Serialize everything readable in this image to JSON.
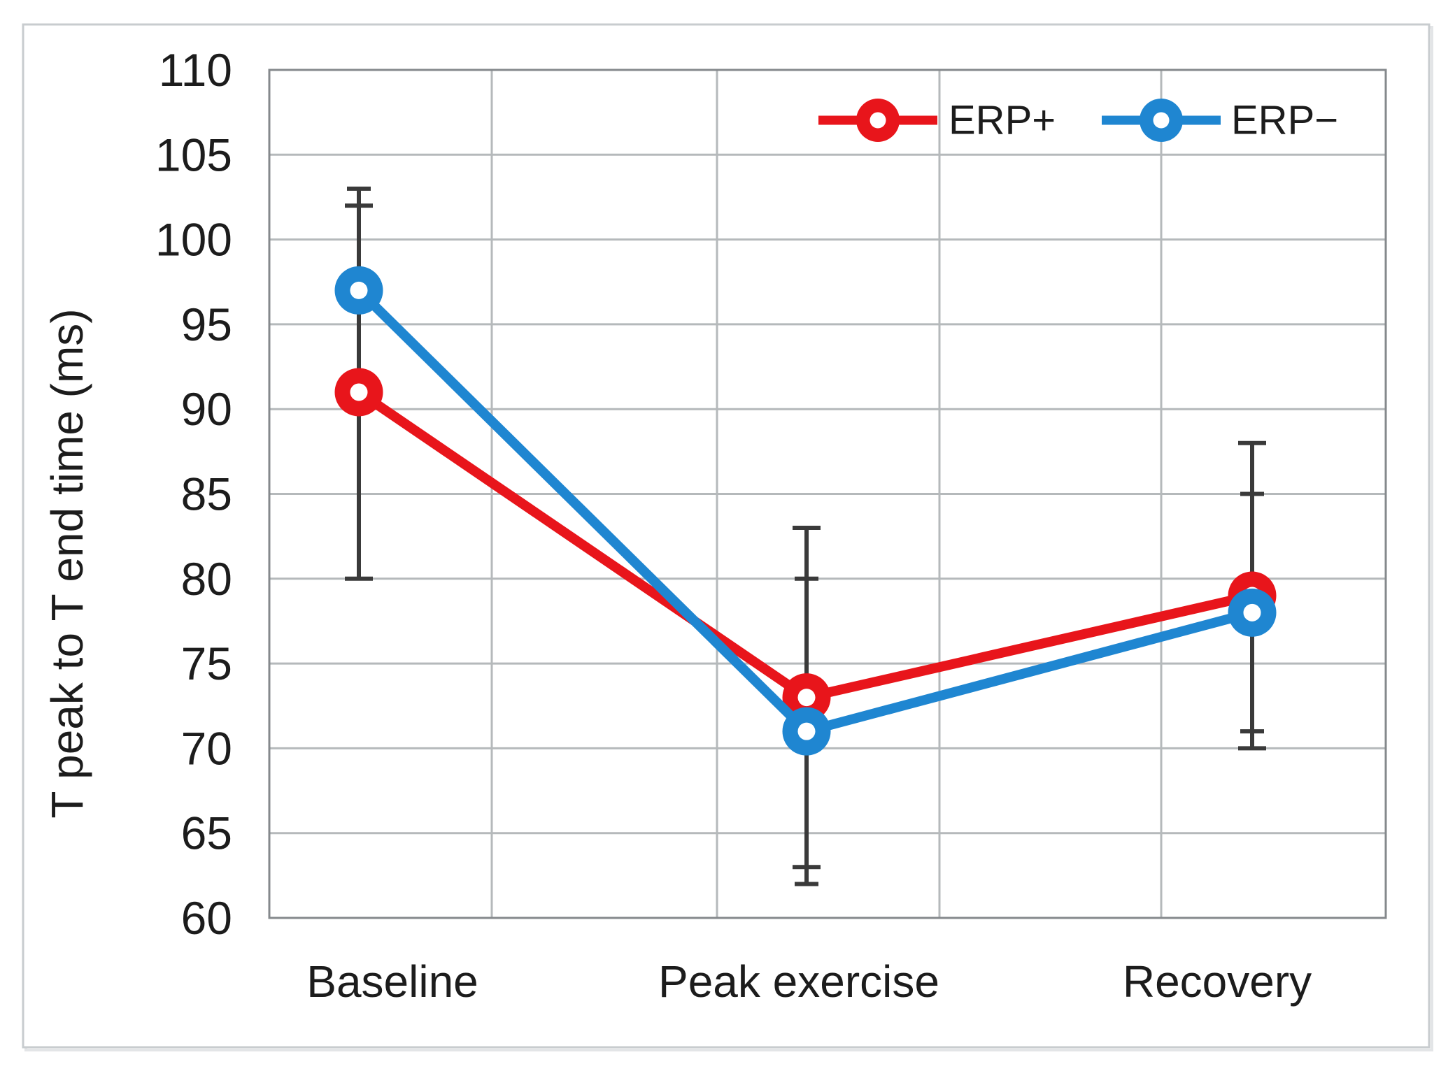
{
  "chart_data": {
    "type": "line",
    "title": "",
    "xlabel": "",
    "ylabel": "T peak to T end time (ms)",
    "categories": [
      "Baseline",
      "Peak exercise",
      "Recovery"
    ],
    "series": [
      {
        "name": "ERP+",
        "color": "#e8151b",
        "values": [
          91,
          73,
          79
        ],
        "error_low": [
          80,
          63,
          70
        ],
        "error_high": [
          102,
          83,
          88
        ]
      },
      {
        "name": "ERP−",
        "color": "#1f86d1",
        "values": [
          97,
          71,
          78
        ],
        "error_low": [
          91,
          62,
          71
        ],
        "error_high": [
          103,
          80,
          85
        ]
      }
    ],
    "ylim": [
      60,
      110
    ],
    "ytick_step": 5,
    "yticks": [
      110,
      105,
      100,
      95,
      90,
      85,
      80,
      75,
      70,
      65,
      60
    ],
    "grid": true,
    "legend_position": "top-right-inside",
    "marker_style": "open-circle-donut",
    "colors": {
      "error_bar": "#3a3a3a",
      "gridline": "#b5b9bb",
      "plot_border": "#85898c",
      "frame_border": "#c8cccf",
      "text": "#1c1c1c",
      "background": "#ffffff"
    }
  }
}
